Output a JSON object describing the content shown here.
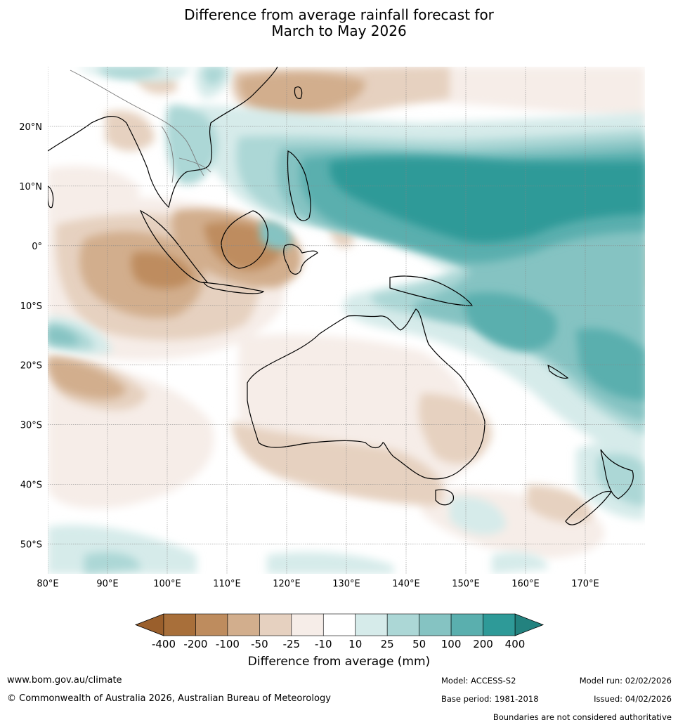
{
  "title": {
    "line1": "Difference from average rainfall forecast for",
    "line2": "March to May 2026"
  },
  "map": {
    "lon_ticks": [
      "80°E",
      "90°E",
      "100°E",
      "110°E",
      "120°E",
      "130°E",
      "140°E",
      "150°E",
      "160°E",
      "170°E"
    ],
    "lat_ticks": [
      "20°N",
      "10°N",
      "0°",
      "10°S",
      "20°S",
      "30°S",
      "40°S",
      "50°S"
    ],
    "lon_range": [
      80,
      180
    ],
    "lat_range": [
      -55,
      30
    ]
  },
  "colorbar": {
    "ticks": [
      "-400",
      "-200",
      "-100",
      "-50",
      "-25",
      "-10",
      "10",
      "25",
      "50",
      "100",
      "200",
      "400"
    ],
    "colors": [
      "#a86f3a",
      "#be8c5e",
      "#d2ae8d",
      "#e6d1c0",
      "#f6ede8",
      "#ffffff",
      "#d6ebea",
      "#acd7d6",
      "#85c3c2",
      "#5aafae",
      "#2e9a98"
    ],
    "low_color": "#9a5f2c",
    "high_color": "#23827f",
    "title": "Difference from average (mm)"
  },
  "footer": {
    "url": "www.bom.gov.au/climate",
    "copyright": "© Commonwealth of Australia 2026, Australian Bureau of Meteorology",
    "model": "Model: ACCESS-S2",
    "model_run": "Model run: 02/02/2026",
    "base_period": "Base period: 1981-2018",
    "issued": "Issued: 04/02/2026",
    "disclaimer": "Boundaries are not considered authoritative"
  }
}
